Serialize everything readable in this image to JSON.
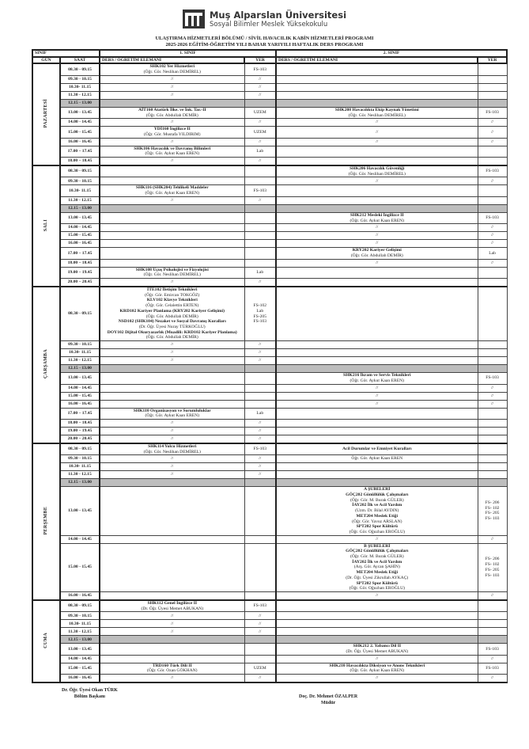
{
  "header": {
    "university": "Muş Alparslan Üniversitesi",
    "school": "Sosyal Bilimler Meslek Yüksekokulu",
    "title1": "ULAŞTIRMA HİZMETLERİ BÖLÜMÜ / SİVİL HAVACILIK KABİN HİZMETLERİ PROGRAMI",
    "title2": "2025-2026 EĞİTİM-ÖĞRETİM YILI BAHAR YARIYILI HAFTALIK DERS PROGRAMI"
  },
  "table": {
    "sinif": "SINIF",
    "gun": "GÜN",
    "saat": "SAAT",
    "class1": "1. SINIF",
    "class2": "2. SINIF",
    "course_col": "DERS / ÖĞRETİM ELEMANI",
    "room_col": "YER"
  },
  "days": [
    {
      "name": "PAZARTESİ",
      "rows": [
        {
          "time": "08.30 - 09.15",
          "c1": {
            "courses": [
              {
                "course": "SHK102 Yer Hizmetleri",
                "instructor": "(Öğr. Gör. Neslihan DEMİREL)"
              }
            ]
          },
          "r1": [
            "FS-103"
          ]
        },
        {
          "time": "09.30 - 10.15",
          "c1": "//",
          "r1": [
            "//"
          ]
        },
        {
          "time": "10.30- 11.15",
          "c1": "//",
          "r1": [
            "//"
          ]
        },
        {
          "time": "11.30 - 12.15",
          "c1": "//",
          "r1": [
            "//"
          ]
        },
        {
          "time": "12.15 - 13.00",
          "lunch": true
        },
        {
          "time": "13.00 - 13.45",
          "c1": {
            "courses": [
              {
                "course": "AİT160 Atatürk İlke. ve İnk. Tar.-II",
                "instructor": "(Öğr. Gör. Abdullah DEMİR)"
              }
            ]
          },
          "r1": [
            "UZEM"
          ],
          "c2": {
            "courses": [
              {
                "course": "SHK208 Havacılıkta Ekip Kaynak Yönetimi",
                "instructor": "(Öğr. Gör. Neslihan DEMİREL)"
              }
            ]
          },
          "r2": [
            "FS-103"
          ]
        },
        {
          "time": "14.00 - 14.45",
          "c1": "//",
          "r1": [
            "//"
          ],
          "c2": "//",
          "r2": [
            "//"
          ]
        },
        {
          "time": "15.00 - 15.45",
          "c1": {
            "courses": [
              {
                "course": "YDİ160 İngilizce II",
                "instructor": "(Öğr. Gör. Mustafa YILDIRIM)"
              }
            ]
          },
          "r1": [
            "UZEM"
          ],
          "c2": "//",
          "r2": [
            "//"
          ]
        },
        {
          "time": "16.00 - 16.45",
          "c1": "//",
          "r1": [
            "//"
          ],
          "c2": "//",
          "r2": [
            "//"
          ]
        },
        {
          "time": "17.00 – 17.45",
          "c1": {
            "courses": [
              {
                "course": "SHK106 Havacılık ve Davranış Bilimleri",
                "instructor": "(Öğr. Gör. Aykut Kaan EREN)"
              }
            ]
          },
          "r1": [
            "Lab"
          ]
        },
        {
          "time": "18.00 – 18.45",
          "c1": "//",
          "r1": [
            "//"
          ]
        }
      ]
    },
    {
      "name": "SALI",
      "rows": [
        {
          "time": "08.30 - 09.15",
          "c2": {
            "courses": [
              {
                "course": "SHK206 Havacılık Güvenliği",
                "instructor": "(Öğr. Gör. Neslihan DEMİREL)"
              }
            ]
          },
          "r2": [
            "FS-103"
          ]
        },
        {
          "time": "09.30 - 10.15",
          "c2": "//",
          "r2": [
            "//"
          ]
        },
        {
          "time": "10.30- 11.15",
          "c1": {
            "courses": [
              {
                "course": "SHK116 (SHK204) Tehlikeli Maddeler",
                "instructor": "(Öğr. Gör. Aykut Kaan EREN)"
              }
            ]
          },
          "r1": [
            "FS-103"
          ]
        },
        {
          "time": "11.30 - 12.15",
          "c1": "//",
          "r1": [
            "//"
          ]
        },
        {
          "time": "12.15 - 13.00",
          "lunch": true
        },
        {
          "time": "13.00 - 13.45",
          "c2": {
            "courses": [
              {
                "course": "SHK212 Mesleki İngilizce II",
                "instructor": "(Öğr. Gör. Aykut Kaan EREN)"
              }
            ]
          },
          "r2": [
            "FS-103"
          ]
        },
        {
          "time": "14.00 - 14.45",
          "c2": "//",
          "r2": [
            "//"
          ]
        },
        {
          "time": "15.00 - 15.45",
          "c2": "//",
          "r2": [
            "//"
          ]
        },
        {
          "time": "16.00 - 16.45",
          "c2": "//",
          "r2": [
            "//"
          ]
        },
        {
          "time": "17.00 – 17.45",
          "c2": {
            "courses": [
              {
                "course": "KRY202 Kariyer Gelişimi",
                "instructor": "(Öğr. Gör. Abdullah DEMİR)"
              }
            ]
          },
          "r2": [
            "Lab"
          ]
        },
        {
          "time": "18.00 – 18.45",
          "c2": "//",
          "r2": [
            "//"
          ]
        },
        {
          "time": "19.00 – 19.45",
          "c1": {
            "courses": [
              {
                "course": "SHK108 Uçuş Psikolojisi ve Fizyolojisi",
                "instructor": "(Öğr. Gör. Neslihan DEMİREL)"
              }
            ]
          },
          "r1": [
            "Lab"
          ]
        },
        {
          "time": "20.00 – 20.45",
          "c1": "//",
          "r1": [
            "//"
          ]
        }
      ]
    },
    {
      "name": "ÇARŞAMBA",
      "rows": [
        {
          "time": "08.30 - 09.15",
          "c1": {
            "courses": [
              {
                "course": "İTE102 İletişim Teknikleri",
                "instructor": "(Öğr. Gör. Emircan TOKGÖZ)"
              },
              {
                "course": "KLV102 Klavye Teknikleri",
                "instructor": "(Öğr. Gör. Celalettin ERTEN)"
              },
              {
                "course": "KRD102 Kariyer Planlama (KRY202 Kariyer Gelişimi)",
                "instructor": "(Öğr. Gör. Abdullah DEMİR)"
              },
              {
                "course": "NSD102 (SHK104) Nezaket ve Sosyal Davranış Kuralları",
                "instructor": "(Dr. Öğr. Üyesi Nuray TÜRKOĞLU)"
              },
              {
                "course": "DOY102 Dijital Okuryazarlık (Muadili: KRD102 Kariyer Planlama)",
                "instructor": "(Öğr. Gör. Abdullah DEMİR)"
              }
            ]
          },
          "r1": [
            "FS-102",
            "Lab",
            "FS-205",
            "FS-103"
          ]
        },
        {
          "time": "09.30 - 10.15",
          "c1": "//",
          "r1": [
            "//"
          ]
        },
        {
          "time": "10.30- 11.15",
          "c1": "//",
          "r1": [
            "//"
          ]
        },
        {
          "time": "11.30 - 12.15",
          "c1": "//",
          "r1": [
            "//"
          ]
        },
        {
          "time": "12.15 - 13.00",
          "lunch": true
        },
        {
          "time": "13.00 - 13.45",
          "c2": {
            "courses": [
              {
                "course": "SHK216 İkram ve Servis Teknikleri",
                "instructor": "(Öğr. Gör. Aykut Kaan EREN)"
              }
            ]
          },
          "r2": [
            "FS-103"
          ]
        },
        {
          "time": "14.00 - 14.45",
          "c2": "//",
          "r2": [
            "//"
          ]
        },
        {
          "time": "15.00 - 15.45",
          "c2": "//",
          "r2": [
            "//"
          ]
        },
        {
          "time": "16.00 - 16.45",
          "c2": "//",
          "r2": [
            "//"
          ]
        },
        {
          "time": "17.00 – 17.45",
          "c1": {
            "courses": [
              {
                "course": "SHK110 Organizasyon ve Sorumluluklar",
                "instructor": "(Öğr. Gör. Aykut Kaan EREN)"
              }
            ]
          },
          "r1": [
            "Lab"
          ]
        },
        {
          "time": "18.00 – 18.45",
          "c1": "//",
          "r1": [
            "//"
          ]
        },
        {
          "time": "19.00 – 19.45",
          "c1": "//",
          "r1": [
            "//"
          ]
        },
        {
          "time": "20.00 – 20.45",
          "c1": "//",
          "r1": [
            "//"
          ]
        }
      ]
    },
    {
      "name": "PERŞEMBE",
      "rows": [
        {
          "time": "08.30 - 09.15",
          "c1": {
            "courses": [
              {
                "course": "SHK114 Yolcu Hizmetleri",
                "instructor": "(Öğr. Gör. Neslihan DEMİREL)"
              }
            ]
          },
          "r1": [
            "FS-103"
          ],
          "c2": {
            "courses": [
              {
                "course": "Acil Durumlar ve Emniyet Kuralları",
                "instructor": ""
              }
            ]
          }
        },
        {
          "time": "09.30 - 10.15",
          "c1": "//",
          "r1": [
            "//"
          ],
          "c2": {
            "courses": [
              {
                "course": "",
                "instructor": "Öğr. Gör. Aykut Kaan EREN"
              }
            ]
          }
        },
        {
          "time": "10.30- 11.15",
          "c1": "//",
          "r1": [
            "//"
          ]
        },
        {
          "time": "11.30 - 12.15",
          "c1": "//",
          "r1": [
            "//"
          ]
        },
        {
          "time": "12.15 - 13.00",
          "lunch": true
        },
        {
          "time": "13.00 - 13.45",
          "c2": {
            "heading": "A ŞUBELERİ",
            "courses": [
              {
                "course": "GÖÇ202 Gönüllülük Çalışmaları",
                "instructor": "(Öğr. Gör. M. Burak GÜLER)"
              },
              {
                "course": "İAY202 İlk ve Acil Yardım",
                "instructor": "(Uzm. Dr. Bilal AYDIN)"
              },
              {
                "course": "MET204 Meslek Etiği",
                "instructor": "(Öğr. Gör. Yavuz ARSLAN)"
              },
              {
                "course": "SPT202 Spor Kültürü",
                "instructor": "(Öğr. Gör. Oğuzhan EROĞLU)"
              }
            ]
          },
          "r2": [
            "FS- 206",
            "FS- 102",
            "FS- 205",
            "FS- 103"
          ]
        },
        {
          "time": "14.00 - 14.45",
          "c2": "//",
          "r2": [
            "//"
          ]
        },
        {
          "time": "15.00 - 15.45",
          "c2": {
            "heading": "B ŞUBELERİ",
            "courses": [
              {
                "course": "GÖÇ202 Gönüllülük Çalışmaları",
                "instructor": "(Öğr. Gör. M. Burak GÜLER)"
              },
              {
                "course": "İAY202 İlk ve Acil Yardım",
                "instructor": "(Arş. Gör. Aycan ŞAHİN)"
              },
              {
                "course": "MET204 Meslek Etiği",
                "instructor": "(Dr. Öğr. Üyesi Zikrullah AYKAÇ)"
              },
              {
                "course": "SPT202 Spor Kültürü",
                "instructor": "(Öğr. Gör. Oğuzhan EROĞLU)"
              }
            ]
          },
          "r2": [
            "FS- 206",
            "FS- 102",
            "FS- 205",
            "FS- 103"
          ]
        },
        {
          "time": "16.00 - 16.45",
          "c2": "//",
          "r2": [
            "//"
          ]
        }
      ]
    },
    {
      "name": "CUMA",
      "rows": [
        {
          "time": "08.30 - 09.15",
          "c1": {
            "courses": [
              {
                "course": "SHK112 Genel İngilizce II",
                "instructor": "(Dr. Öğr. Üyesi Memet ABUKAN)"
              }
            ]
          },
          "r1": [
            "FS-103"
          ]
        },
        {
          "time": "09.30 - 10.15",
          "c1": "//",
          "r1": [
            "//"
          ]
        },
        {
          "time": "10.30- 11.15",
          "c1": "//",
          "r1": [
            "//"
          ]
        },
        {
          "time": "11.30 - 12.15",
          "c1": "//",
          "r1": [
            "//"
          ]
        },
        {
          "time": "12.15 - 13.00",
          "lunch": true
        },
        {
          "time": "13.00 - 13.45",
          "c2": {
            "courses": [
              {
                "course": "SHK212 2. Yabancı Dil II",
                "instructor": "(Dr. Öğr. Üyesi Memet ABUKAN)"
              }
            ]
          },
          "r2": [
            "FS-103"
          ]
        },
        {
          "time": "14.00 - 14.45",
          "c2": "//",
          "r2": [
            "//"
          ]
        },
        {
          "time": "15.00 - 15.45",
          "c1": {
            "courses": [
              {
                "course": "TRD160 Türk Dili II",
                "instructor": "(Öğr. Gör. Ozan GÖKHAN)"
              }
            ]
          },
          "r1": [
            "UZEM"
          ],
          "c2": {
            "courses": [
              {
                "course": "SHK210 Havacılıkta Diksiyon ve Anons Teknikleri",
                "instructor": "(Öğr. Gör. Aykut Kaan EREN)"
              }
            ]
          },
          "r2": [
            "FS-103"
          ]
        },
        {
          "time": "16.00 - 16.45",
          "c1": "//",
          "r1": [
            "//"
          ],
          "c2": "//",
          "r2": [
            "//"
          ]
        }
      ]
    }
  ],
  "signatures": {
    "left_name": "Dr. Öğr. Üyesi Okan TÜRK",
    "left_title": "Bölüm Başkanı",
    "right_name": "Doç. Dr. Mehmet ÖZALPER",
    "right_title": "Müdür"
  }
}
